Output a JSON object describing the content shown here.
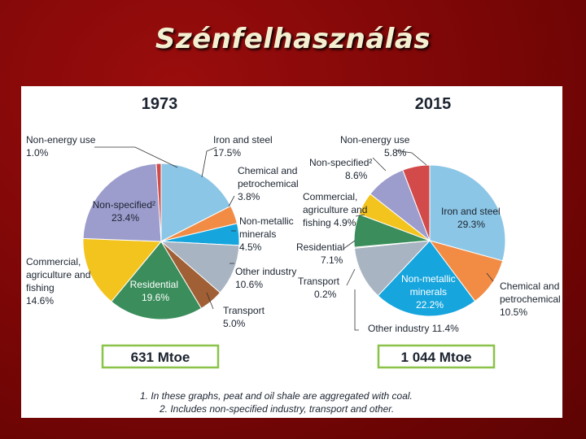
{
  "title": "Szénfelhasználás",
  "chart_data": [
    {
      "type": "pie",
      "title": "1973",
      "total": "631 Mtoe",
      "slices": [
        {
          "name": "Iron and steel",
          "value": 17.5,
          "label": "17.5%",
          "color": "#8cc6e6"
        },
        {
          "name": "Chemical and petrochemical",
          "value": 3.8,
          "label": "3.8%",
          "color": "#f28c45"
        },
        {
          "name": "Non-metallic minerals",
          "value": 4.5,
          "label": "4.5%",
          "color": "#16a5dd"
        },
        {
          "name": "Other industry",
          "value": 10.6,
          "label": "10.6%",
          "color": "#a9b4c2"
        },
        {
          "name": "Transport",
          "value": 5.0,
          "label": "5.0%",
          "color": "#a05f34"
        },
        {
          "name": "Residential",
          "value": 19.6,
          "label": "19.6%",
          "color": "#3b8e5c"
        },
        {
          "name": "Commercial, agriculture and fishing",
          "value": 14.6,
          "label": "14.6%",
          "color": "#f3c31e"
        },
        {
          "name": "Non-specified²",
          "value": 23.4,
          "label": "23.4%",
          "color": "#9c9ccd"
        },
        {
          "name": "Non-energy use",
          "value": 1.0,
          "label": "1.0%",
          "color": "#d24a4a"
        }
      ]
    },
    {
      "type": "pie",
      "title": "2015",
      "total": "1 044 Mtoe",
      "slices": [
        {
          "name": "Iron and steel",
          "value": 29.3,
          "label": "29.3%",
          "color": "#8cc6e6"
        },
        {
          "name": "Chemical and petrochemical",
          "value": 10.5,
          "label": "10.5%",
          "color": "#f28c45"
        },
        {
          "name": "Non-metallic minerals",
          "value": 22.2,
          "label": "22.2%",
          "color": "#16a5dd"
        },
        {
          "name": "Other industry",
          "value": 11.4,
          "label": "11.4%",
          "color": "#a9b4c2"
        },
        {
          "name": "Transport",
          "value": 0.2,
          "label": "0.2%",
          "color": "#a05f34"
        },
        {
          "name": "Residential",
          "value": 7.1,
          "label": "7.1%",
          "color": "#3b8e5c"
        },
        {
          "name": "Commercial, agriculture and fishing",
          "value": 4.9,
          "label": "4.9%",
          "color": "#f3c31e"
        },
        {
          "name": "Non-specified²",
          "value": 8.6,
          "label": "8.6%",
          "color": "#9c9ccd"
        },
        {
          "name": "Non-energy use",
          "value": 5.8,
          "label": "5.8%",
          "color": "#d24a4a"
        }
      ]
    }
  ],
  "labels_1973": {
    "non_energy": [
      "Non-energy use",
      "1.0%"
    ],
    "iron": [
      "Iron and steel",
      "17.5%"
    ],
    "chemical": [
      "Chemical and",
      "petrochemical",
      "3.8%"
    ],
    "nonmetallic": [
      "Non-metallic",
      "minerals",
      "4.5%"
    ],
    "other": [
      "Other industry",
      "10.6%"
    ],
    "transport": [
      "Transport",
      "5.0%"
    ],
    "residential": [
      "Residential",
      "19.6%"
    ],
    "commercial": [
      "Commercial,",
      "agriculture and",
      "fishing",
      "14.6%"
    ],
    "nonspec": [
      "Non-specified²",
      "23.4%"
    ]
  },
  "labels_2015": {
    "non_energy": [
      "Non-energy use",
      "5.8%"
    ],
    "nonspec": [
      "Non-specified²",
      "8.6%"
    ],
    "commercial": [
      "Commercial,",
      "agriculture and",
      "fishing 4.9%"
    ],
    "residential": [
      "Residential",
      "7.1%"
    ],
    "transport": [
      "Transport",
      "0.2%"
    ],
    "iron": [
      "Iron and steel",
      "29.3%"
    ],
    "nonmetallic": [
      "Non-metallic",
      "minerals",
      "22.2%"
    ],
    "chemical": [
      "Chemical and",
      "petrochemical",
      "10.5%"
    ],
    "other": [
      "Other industry 11.4%"
    ]
  },
  "notes": [
    "1. In these graphs, peat and oil shale are aggregated with coal.",
    "2. Includes non-specified industry, transport and other."
  ]
}
